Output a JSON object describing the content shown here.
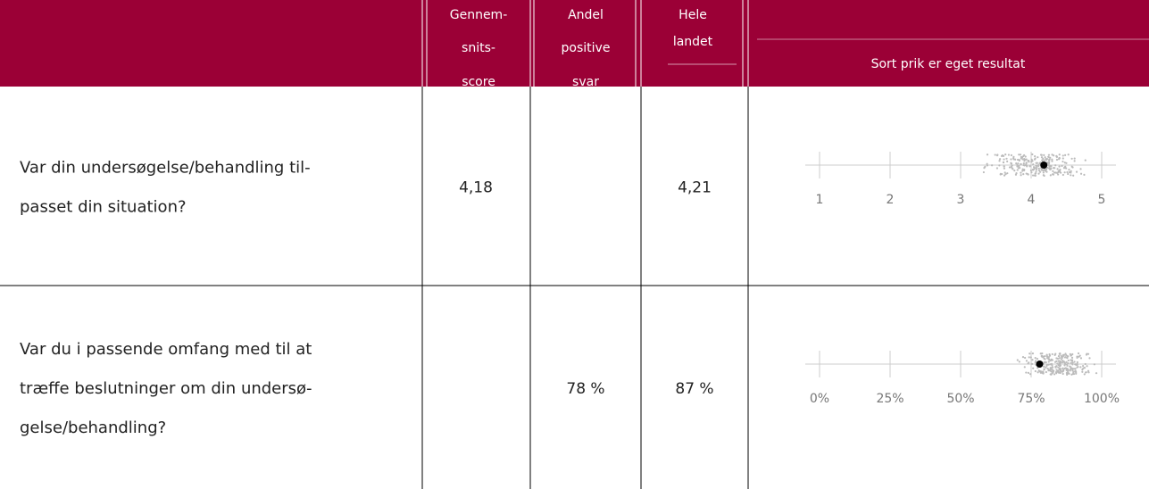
{
  "header": {
    "columns": [
      [
        "Gennem-",
        "snits-",
        "score"
      ],
      [
        "Andel",
        "positive",
        "svar"
      ],
      [
        "Hele",
        "landet"
      ],
      [
        "Sort prik er eget resultat"
      ]
    ]
  },
  "rows": [
    {
      "question": [
        "Var din undersøgelse/behandling til-",
        "passet din situation?"
      ],
      "mean": "4,18",
      "national": "4,21",
      "chart": {
        "type": "scatter",
        "xlim": [
          1,
          5
        ],
        "xticks": [
          1,
          2,
          3,
          4,
          5
        ],
        "own": 4.18
      }
    },
    {
      "question": [
        "Var du i passende omfang med til at",
        "træffe beslutninger om din undersø-",
        "gelse/behandling?"
      ],
      "positive": "78 %",
      "national": "87 %",
      "chart": {
        "type": "scatter",
        "xlim": [
          0,
          100
        ],
        "xticks": [
          {
            "value": 0,
            "label": "0%"
          },
          {
            "value": 25,
            "label": "25%"
          },
          {
            "value": 50,
            "label": "50%"
          },
          {
            "value": 75,
            "label": "75%"
          },
          {
            "value": 100,
            "label": "100%"
          }
        ],
        "own": 78
      }
    }
  ]
}
